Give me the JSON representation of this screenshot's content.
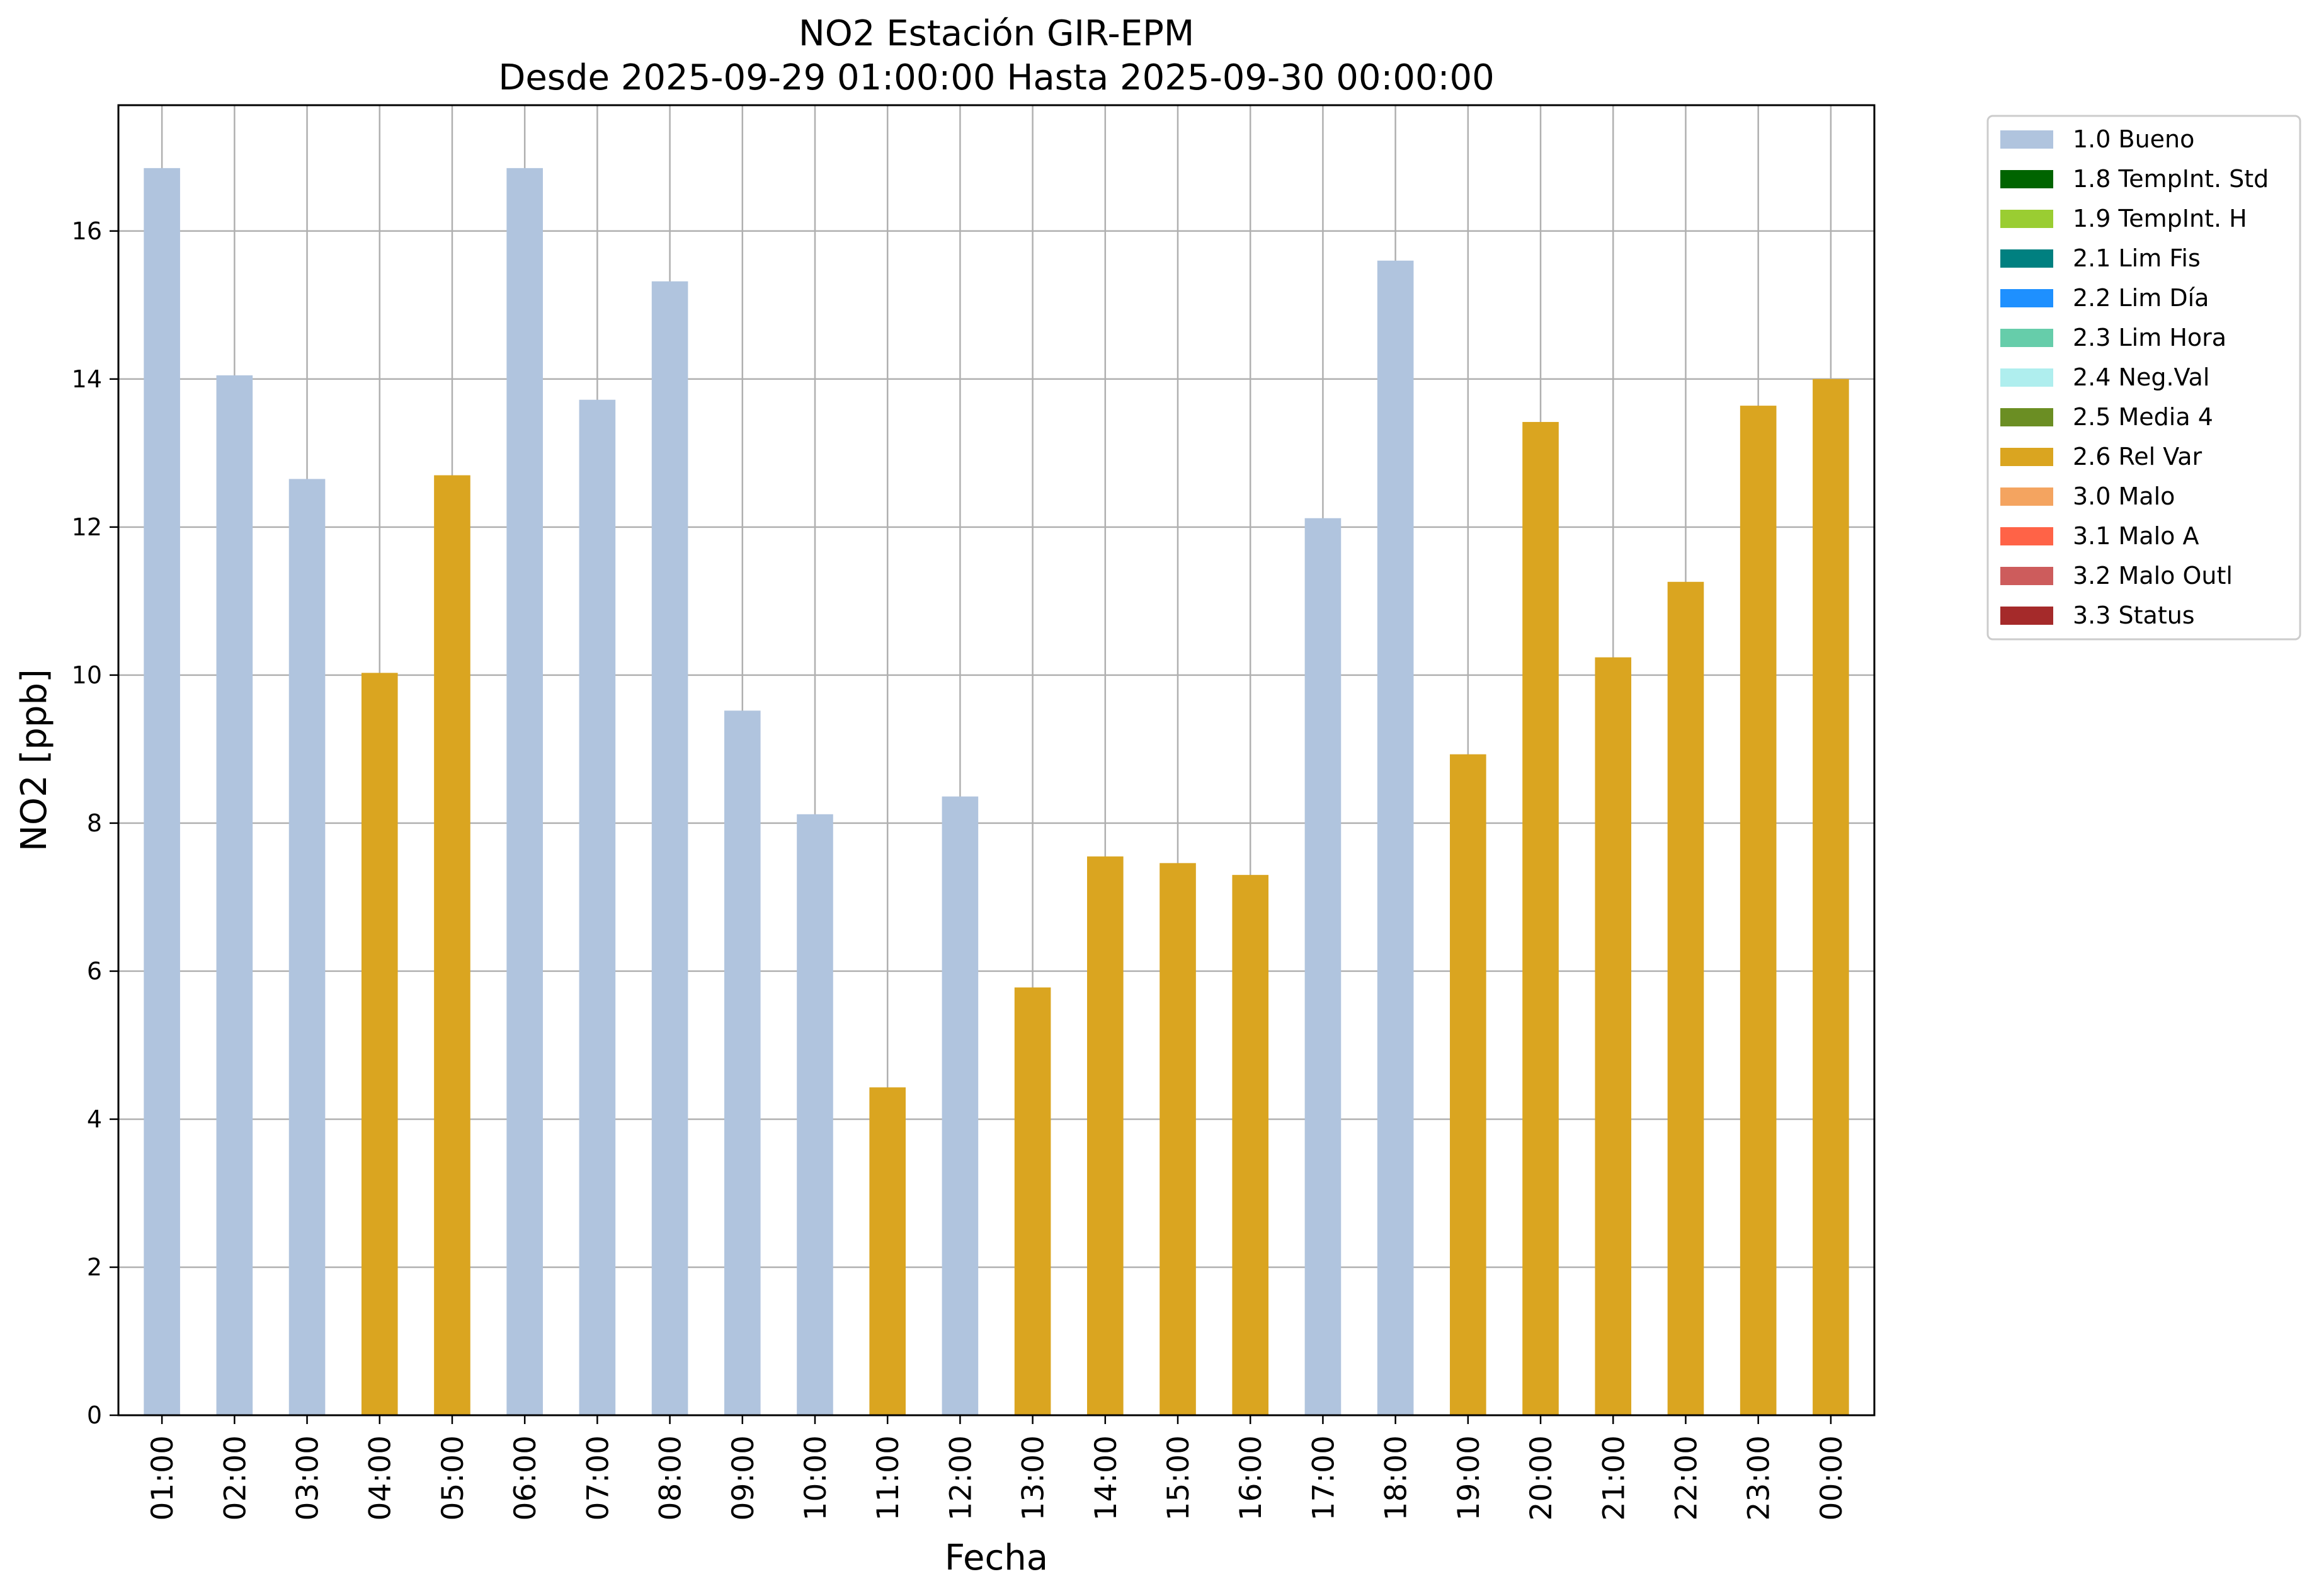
{
  "chart_data": {
    "type": "bar",
    "title": "NO2 Estación GIR-EPM",
    "subtitle": "Desde 2025-09-29 01:00:00 Hasta 2025-09-30 00:00:00",
    "xlabel": "Fecha",
    "ylabel": "NO2 [ppb]",
    "ylim": [
      0,
      17.7
    ],
    "yticks": [
      0,
      2,
      4,
      6,
      8,
      10,
      12,
      14,
      16
    ],
    "grid": true,
    "legend_position": "outside-top-right",
    "categories": [
      "01:00",
      "02:00",
      "03:00",
      "04:00",
      "05:00",
      "06:00",
      "07:00",
      "08:00",
      "09:00",
      "10:00",
      "11:00",
      "12:00",
      "13:00",
      "14:00",
      "15:00",
      "16:00",
      "17:00",
      "18:00",
      "19:00",
      "20:00",
      "21:00",
      "22:00",
      "23:00",
      "00:00"
    ],
    "values": [
      16.85,
      14.05,
      12.65,
      10.03,
      12.7,
      16.85,
      13.72,
      15.32,
      9.52,
      8.12,
      4.43,
      8.36,
      5.78,
      7.55,
      7.46,
      7.3,
      12.12,
      15.6,
      8.93,
      13.42,
      10.24,
      11.26,
      13.64,
      14.0
    ],
    "flags": [
      "1.0",
      "1.0",
      "1.0",
      "2.6",
      "2.6",
      "1.0",
      "1.0",
      "1.0",
      "1.0",
      "1.0",
      "2.6",
      "1.0",
      "2.6",
      "2.6",
      "2.6",
      "2.6",
      "1.0",
      "1.0",
      "2.6",
      "2.6",
      "2.6",
      "2.6",
      "2.6",
      "2.6"
    ],
    "legend": [
      {
        "code": "1.0",
        "label": "1.0 Bueno",
        "color": "#b0c4de"
      },
      {
        "code": "1.8",
        "label": "1.8 TempInt. Std",
        "color": "#006400"
      },
      {
        "code": "1.9",
        "label": "1.9 TempInt. H",
        "color": "#9acd32"
      },
      {
        "code": "2.1",
        "label": "2.1 Lim Fis",
        "color": "#008080"
      },
      {
        "code": "2.2",
        "label": "2.2 Lim Día",
        "color": "#1e90ff"
      },
      {
        "code": "2.3",
        "label": "2.3 Lim Hora",
        "color": "#66cdaa"
      },
      {
        "code": "2.4",
        "label": "2.4 Neg.Val",
        "color": "#afeeee"
      },
      {
        "code": "2.5",
        "label": "2.5 Media 4",
        "color": "#6b8e23"
      },
      {
        "code": "2.6",
        "label": "2.6 Rel Var",
        "color": "#daa520"
      },
      {
        "code": "3.0",
        "label": "3.0 Malo",
        "color": "#f4a460"
      },
      {
        "code": "3.1",
        "label": "3.1 Malo A",
        "color": "#ff6347"
      },
      {
        "code": "3.2",
        "label": "3.2 Malo Outl",
        "color": "#cd5c5c"
      },
      {
        "code": "3.3",
        "label": "3.3 Status",
        "color": "#a52a2a"
      }
    ]
  }
}
